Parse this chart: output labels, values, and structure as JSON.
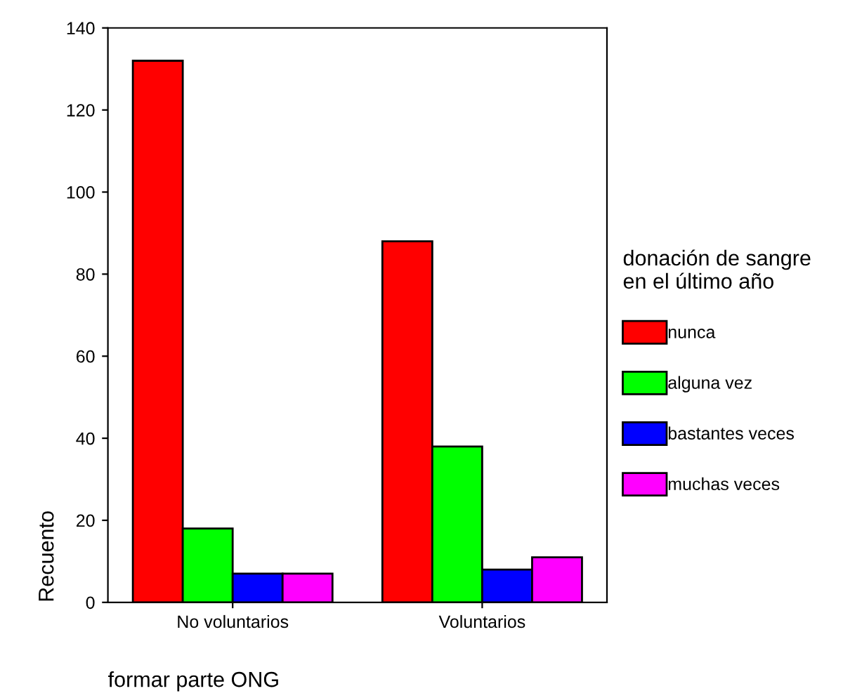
{
  "chart_data": {
    "type": "bar",
    "xlabel": "formar parte ONG",
    "ylabel": "Recuento",
    "legend_title": "donación de sangre\nen el último año",
    "categories": [
      "No voluntarios",
      "Voluntarios"
    ],
    "series": [
      {
        "name": "nunca",
        "color": "#ff0000",
        "values": [
          132,
          88
        ]
      },
      {
        "name": "alguna vez",
        "color": "#00ff00",
        "values": [
          18,
          38
        ]
      },
      {
        "name": "bastantes veces",
        "color": "#0000ff",
        "values": [
          7,
          8
        ]
      },
      {
        "name": "muchas veces",
        "color": "#ff00ff",
        "values": [
          7,
          11
        ]
      }
    ],
    "ylim": [
      0,
      140
    ],
    "yticks": [
      0,
      20,
      40,
      60,
      80,
      100,
      120,
      140
    ],
    "grid": false,
    "legend": "right"
  }
}
